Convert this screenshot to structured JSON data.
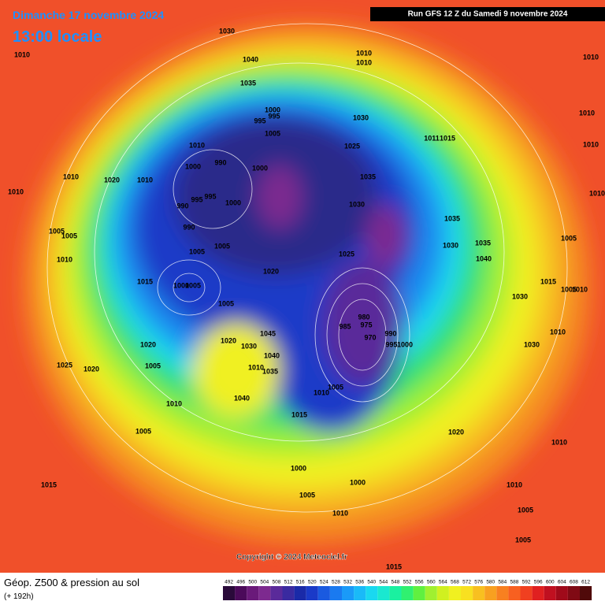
{
  "header": {
    "date": "Dimanche 17 novembre 2024",
    "time": "13:00 locale",
    "run": "Run GFS 12 Z du Samedi 9 novembre 2024"
  },
  "copyright": "Copyright © 2024 Meteociel.fr",
  "footer": {
    "title": "Géop. Z500 & pression au sol",
    "lead": "(+ 192h)"
  },
  "scale": {
    "labels": [
      492,
      496,
      500,
      504,
      508,
      512,
      516,
      520,
      524,
      528,
      532,
      536,
      540,
      544,
      548,
      552,
      556,
      560,
      564,
      568,
      572,
      576,
      580,
      584,
      588,
      592,
      596,
      600,
      604,
      608,
      612
    ],
    "colors": [
      "#2a0a3a",
      "#4b0a5a",
      "#6a1a7a",
      "#7d2a8f",
      "#5a2a9a",
      "#3a2aa0",
      "#1a2aa8",
      "#1a3ac8",
      "#1a5ae0",
      "#1a7af0",
      "#1a9af8",
      "#1abaf8",
      "#1ad8f0",
      "#1ae8d0",
      "#1af0a0",
      "#30f070",
      "#60f040",
      "#a0f030",
      "#d0f020",
      "#f0f020",
      "#f8e020",
      "#f8c020",
      "#f8a020",
      "#f88020",
      "#f86020",
      "#f04020",
      "#e02020",
      "#c01020",
      "#a00a1a",
      "#800a14",
      "#500a0a"
    ]
  },
  "isobar_labels": [
    1030,
    1010,
    1040,
    1010,
    1010,
    1035,
    1010,
    1010,
    1000,
    995,
    995,
    1030,
    1005,
    1011,
    1015,
    1010,
    1025,
    1010,
    990,
    1000,
    1000,
    1035,
    1010,
    1020,
    1010,
    1010,
    1010,
    995,
    995,
    990,
    1000,
    1030,
    1035,
    990,
    1005,
    1005,
    1030,
    1035,
    1005,
    1005,
    1005,
    1025,
    1040,
    1010,
    1020,
    1015,
    1000,
    1005,
    1015,
    1005,
    1010,
    1030,
    1005,
    980,
    975,
    985,
    990,
    970,
    995,
    1000,
    1045,
    1020,
    1030,
    1010,
    1020,
    1040,
    1030,
    1005,
    1010,
    1035,
    1025,
    1020,
    1010,
    1005,
    1040,
    1010,
    1015,
    1005,
    1020,
    1010,
    1000,
    1000,
    1010,
    1015,
    1005,
    1010,
    1005,
    1005,
    1015
  ]
}
